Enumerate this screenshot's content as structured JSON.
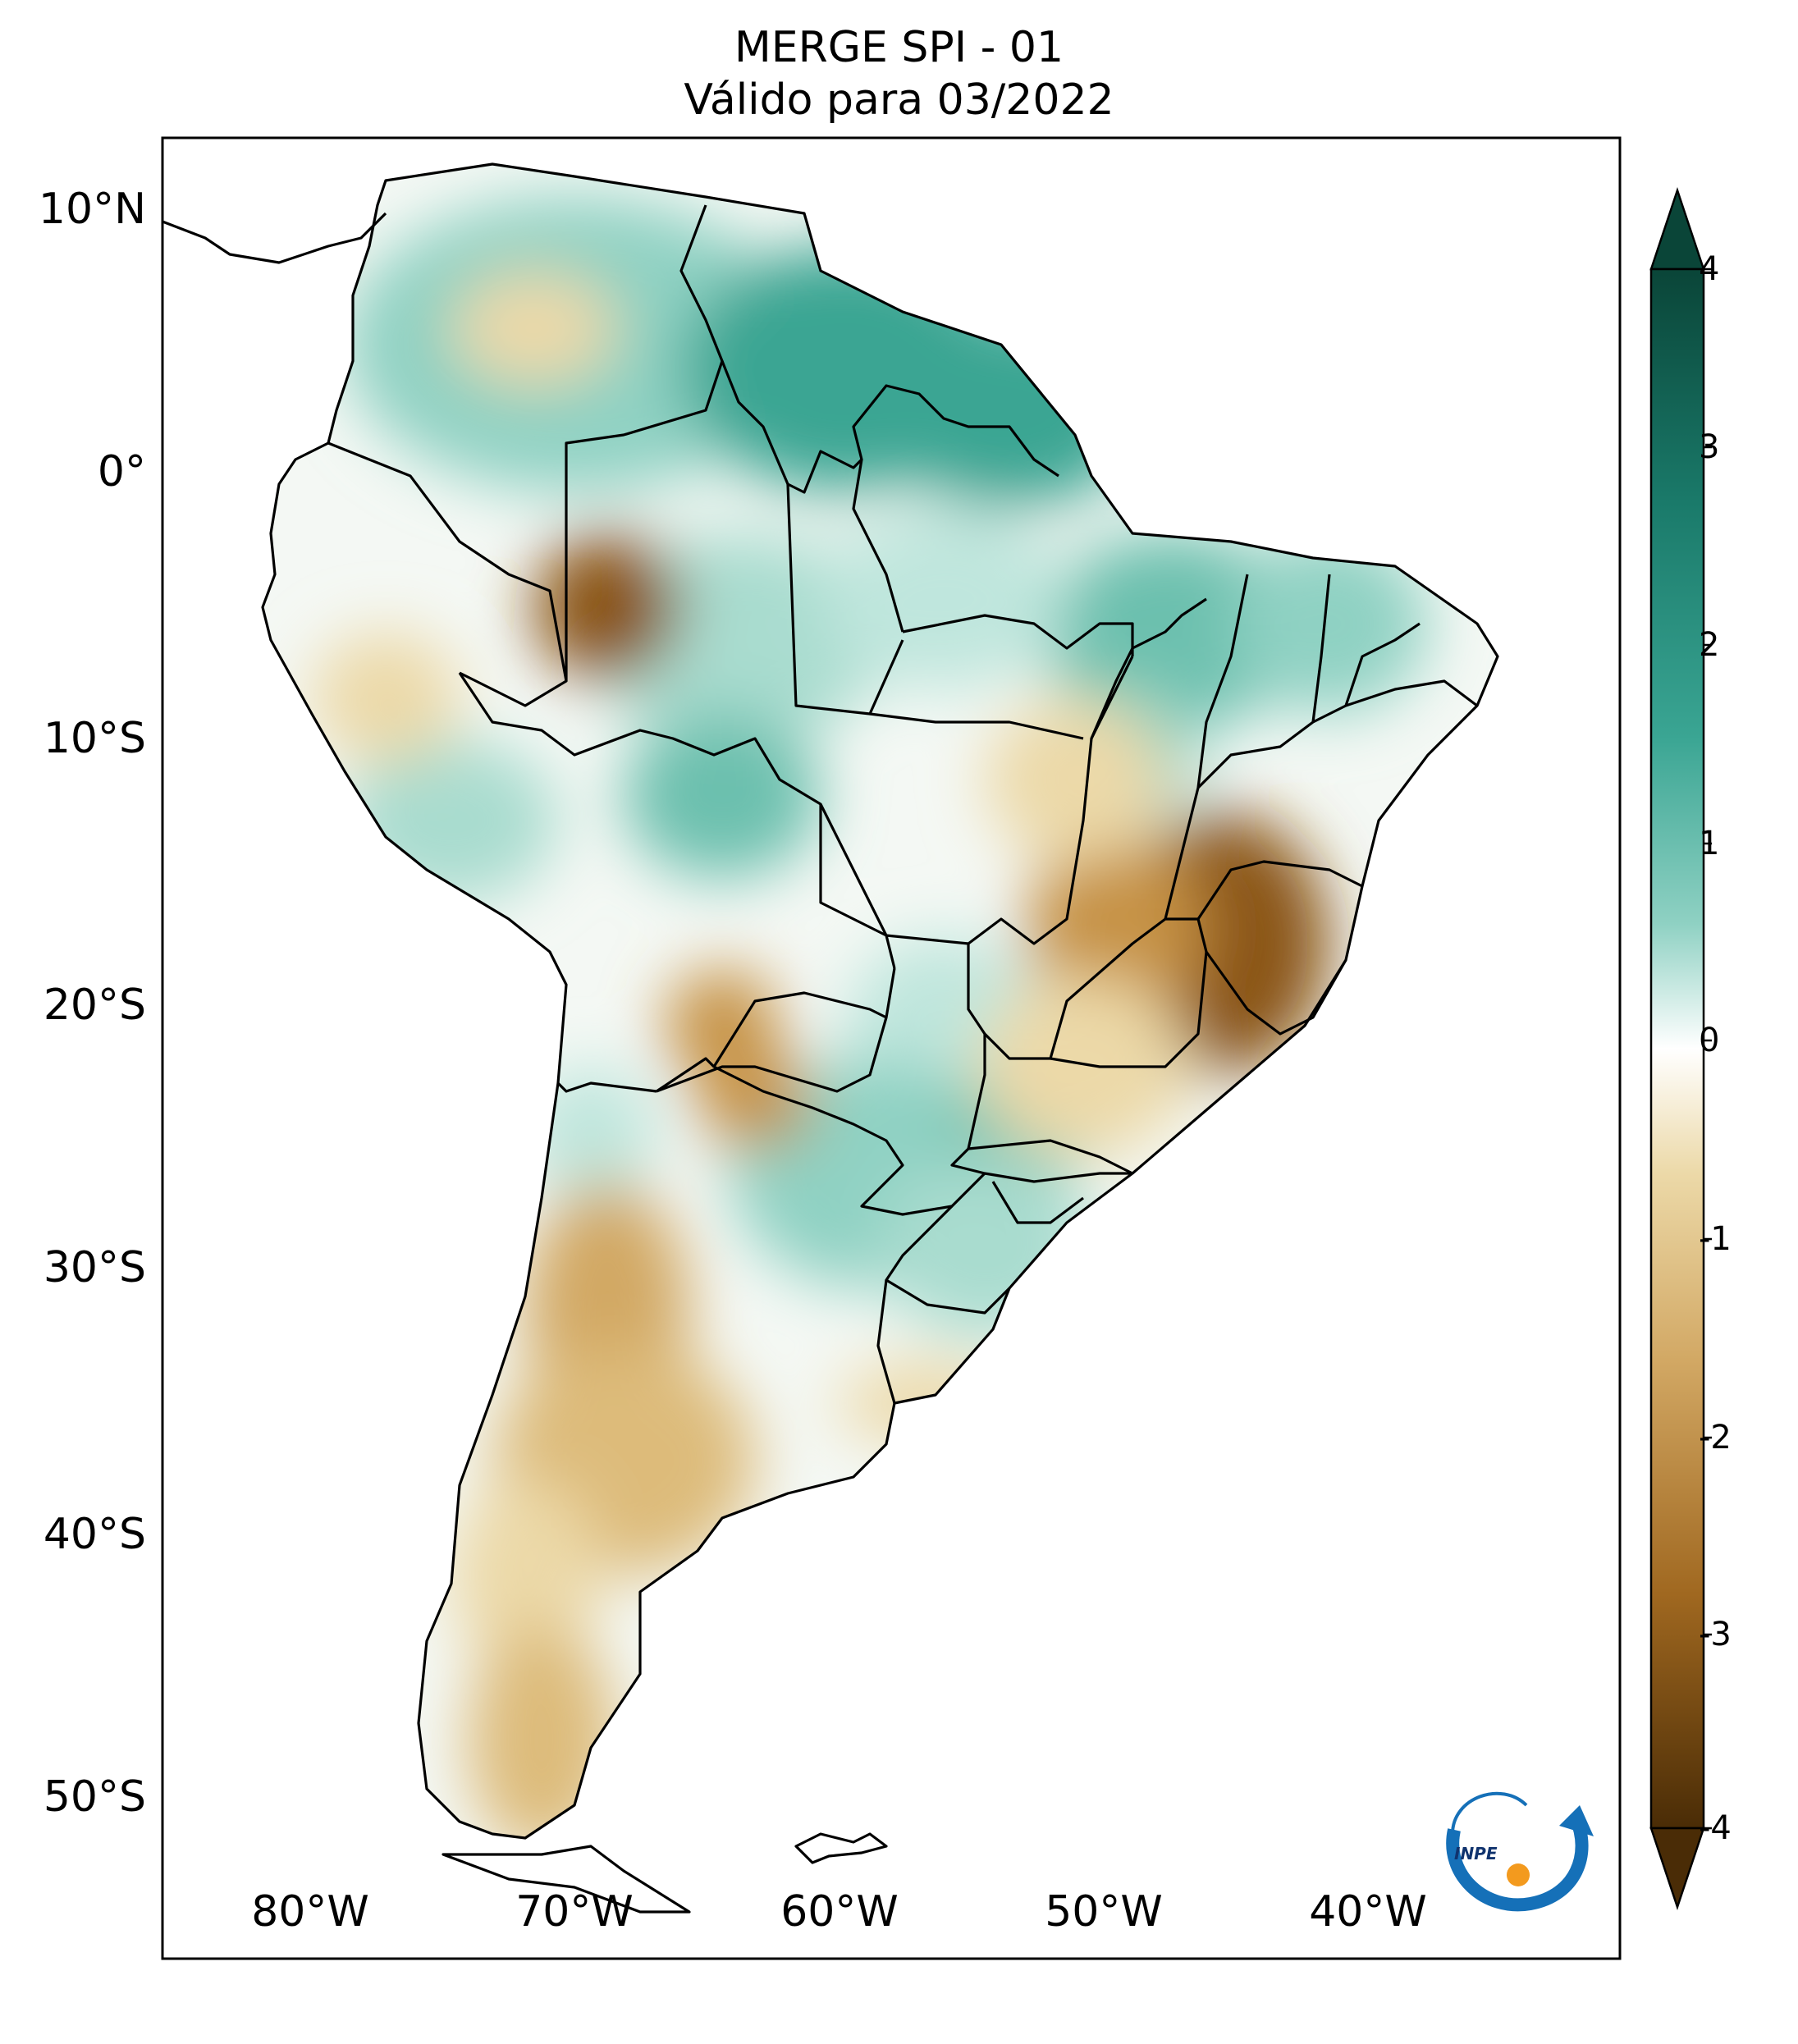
{
  "map": {
    "title": "MERGE   SPI - 01",
    "subtitle": "Válido para 03/2022",
    "lat_labels": [
      "10°N",
      "0°",
      "10°S",
      "20°S",
      "30°S",
      "40°S",
      "50°S"
    ],
    "lon_labels": [
      "80°W",
      "70°W",
      "60°W",
      "50°W",
      "40°W"
    ],
    "region": "South America",
    "colorbar": {
      "ticks": [
        "4",
        "3",
        "2",
        "1",
        "0",
        "-1",
        "-2",
        "-3",
        "-4"
      ],
      "colors": {
        "very_dry": "#4a2c06",
        "dry": "#b5802e",
        "slightly_dry": "#ecd9a8",
        "neutral": "#ffffff",
        "slightly_wet": "#bfe6dd",
        "wet": "#3aa593",
        "very_wet": "#0a4538"
      }
    },
    "logo": {
      "text": "INPE"
    }
  }
}
